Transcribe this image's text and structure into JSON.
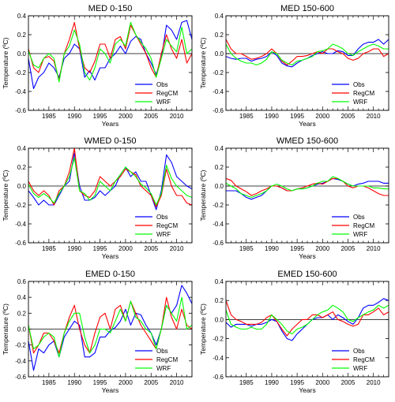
{
  "chart_data": [
    {
      "type": "line",
      "title": "MED 0-150",
      "xlabel": "Years",
      "ylabel": "Temperature (ºC)",
      "xlim": [
        1981,
        2013
      ],
      "ylim": [
        -0.6,
        0.4
      ],
      "xticks": [
        "1985",
        "1990",
        "1995",
        "2000",
        "2005",
        "2010"
      ],
      "yticks": [
        "-0.6",
        "-0.4",
        "-0.2",
        "0.0",
        "0.2",
        "0.4"
      ],
      "legend": "bottom-right",
      "x": [
        1981,
        1982,
        1983,
        1984,
        1985,
        1986,
        1987,
        1988,
        1989,
        1990,
        1991,
        1992,
        1993,
        1994,
        1995,
        1996,
        1997,
        1998,
        1999,
        2000,
        2001,
        2002,
        2003,
        2004,
        2005,
        2006,
        2007,
        2008,
        2009,
        2010,
        2011,
        2012,
        2013
      ],
      "series": [
        {
          "name": "Obs",
          "color": "#0000ff",
          "values": [
            -0.05,
            -0.37,
            -0.25,
            -0.2,
            -0.1,
            -0.15,
            -0.25,
            -0.05,
            0.0,
            0.1,
            0.05,
            -0.25,
            -0.18,
            -0.28,
            -0.15,
            -0.15,
            -0.05,
            0.0,
            0.08,
            0.0,
            0.13,
            0.18,
            0.15,
            0.0,
            -0.1,
            -0.22,
            -0.05,
            0.3,
            0.25,
            0.15,
            0.33,
            0.35,
            0.15
          ]
        },
        {
          "name": "RegCM",
          "color": "#ff0000",
          "values": [
            0.05,
            -0.15,
            -0.2,
            -0.05,
            -0.03,
            -0.08,
            -0.28,
            0.0,
            0.15,
            0.33,
            0.05,
            -0.15,
            -0.2,
            -0.08,
            0.1,
            0.1,
            -0.05,
            0.15,
            0.18,
            0.05,
            0.3,
            0.2,
            0.1,
            0.0,
            -0.15,
            -0.25,
            0.0,
            0.2,
            0.05,
            -0.05,
            0.15,
            -0.1,
            0.0
          ]
        },
        {
          "name": "WRF",
          "color": "#00ff00",
          "values": [
            0.03,
            -0.12,
            -0.15,
            -0.05,
            0.0,
            -0.05,
            -0.3,
            0.0,
            0.08,
            0.25,
            0.1,
            -0.2,
            -0.28,
            -0.15,
            0.05,
            0.0,
            -0.1,
            0.1,
            0.15,
            0.08,
            0.33,
            0.2,
            0.12,
            0.05,
            -0.05,
            -0.25,
            -0.05,
            0.15,
            0.08,
            0.02,
            0.28,
            0.0,
            0.05
          ]
        }
      ]
    },
    {
      "type": "line",
      "title": "MED 150-600",
      "xlabel": "Years",
      "ylabel": "Temperature (ºC)",
      "xlim": [
        1981,
        2013
      ],
      "ylim": [
        -0.6,
        0.4
      ],
      "xticks": [
        "1985",
        "1990",
        "1995",
        "2000",
        "2005",
        "2010"
      ],
      "yticks": [
        "-0.6",
        "-0.4",
        "-0.2",
        "0.0",
        "0.2",
        "0.4"
      ],
      "legend": "bottom-right",
      "x": [
        1981,
        1982,
        1983,
        1984,
        1985,
        1986,
        1987,
        1988,
        1989,
        1990,
        1991,
        1992,
        1993,
        1994,
        1995,
        1996,
        1997,
        1998,
        1999,
        2000,
        2001,
        2002,
        2003,
        2004,
        2005,
        2006,
        2007,
        2008,
        2009,
        2010,
        2011,
        2012,
        2013
      ],
      "series": [
        {
          "name": "Obs",
          "color": "#0000ff",
          "values": [
            -0.03,
            -0.05,
            -0.06,
            -0.05,
            -0.05,
            -0.08,
            -0.06,
            -0.05,
            -0.03,
            0.02,
            -0.02,
            -0.1,
            -0.13,
            -0.14,
            -0.1,
            -0.07,
            -0.05,
            -0.02,
            0.0,
            0.02,
            0.0,
            0.0,
            0.03,
            0.02,
            -0.02,
            -0.02,
            0.05,
            0.1,
            0.12,
            0.12,
            0.15,
            0.1,
            0.15
          ]
        },
        {
          "name": "RegCM",
          "color": "#ff0000",
          "values": [
            0.15,
            0.05,
            0.0,
            0.0,
            -0.03,
            -0.06,
            -0.05,
            -0.03,
            0.0,
            0.05,
            0.0,
            -0.08,
            -0.12,
            -0.08,
            -0.03,
            -0.03,
            -0.02,
            0.0,
            0.02,
            0.0,
            0.05,
            0.05,
            0.02,
            0.0,
            -0.05,
            -0.07,
            -0.05,
            0.0,
            0.02,
            0.05,
            0.05,
            -0.03,
            0.0
          ]
        },
        {
          "name": "WRF",
          "color": "#00ff00",
          "values": [
            0.1,
            0.0,
            -0.05,
            -0.08,
            -0.1,
            -0.1,
            -0.12,
            -0.1,
            -0.06,
            0.02,
            0.0,
            -0.07,
            -0.1,
            -0.12,
            -0.08,
            -0.07,
            -0.05,
            -0.03,
            0.02,
            0.03,
            0.05,
            0.1,
            0.08,
            0.05,
            0.0,
            -0.02,
            0.02,
            0.05,
            0.08,
            0.1,
            0.08,
            0.05,
            0.05
          ]
        }
      ]
    },
    {
      "type": "line",
      "title": "WMED 0-150",
      "xlabel": "Years",
      "ylabel": "Temperature (ºC)",
      "xlim": [
        1981,
        2013
      ],
      "ylim": [
        -0.6,
        0.4
      ],
      "xticks": [
        "1985",
        "1990",
        "1995",
        "2000",
        "2005",
        "2010"
      ],
      "yticks": [
        "-0.6",
        "-0.4",
        "-0.2",
        "0.0",
        "0.2",
        "0.4"
      ],
      "legend": "bottom-right",
      "x": [
        1981,
        1982,
        1983,
        1984,
        1985,
        1986,
        1987,
        1988,
        1989,
        1990,
        1991,
        1992,
        1993,
        1994,
        1995,
        1996,
        1997,
        1998,
        1999,
        2000,
        2001,
        2002,
        2003,
        2004,
        2005,
        2006,
        2007,
        2008,
        2009,
        2010,
        2011,
        2012,
        2013
      ],
      "series": [
        {
          "name": "Obs",
          "color": "#0000ff",
          "values": [
            -0.05,
            -0.12,
            -0.2,
            -0.15,
            -0.2,
            -0.2,
            -0.1,
            0.0,
            0.05,
            0.35,
            0.0,
            -0.15,
            -0.15,
            -0.12,
            -0.05,
            -0.1,
            -0.05,
            0.0,
            0.12,
            0.2,
            0.1,
            0.15,
            0.05,
            0.05,
            -0.1,
            -0.25,
            -0.05,
            0.33,
            0.25,
            0.1,
            0.05,
            0.0,
            -0.03
          ]
        },
        {
          "name": "RegCM",
          "color": "#ff0000",
          "values": [
            0.05,
            -0.05,
            -0.1,
            -0.05,
            -0.1,
            -0.2,
            -0.05,
            0.0,
            0.15,
            0.4,
            -0.05,
            -0.1,
            -0.12,
            -0.05,
            0.1,
            0.05,
            0.0,
            0.05,
            0.1,
            0.18,
            0.15,
            0.12,
            0.0,
            -0.05,
            -0.1,
            -0.22,
            -0.1,
            0.18,
            0.0,
            -0.1,
            -0.1,
            -0.18,
            -0.2
          ]
        },
        {
          "name": "WRF",
          "color": "#00ff00",
          "values": [
            0.02,
            -0.08,
            -0.12,
            -0.08,
            -0.12,
            -0.18,
            -0.08,
            0.0,
            0.1,
            0.3,
            -0.05,
            -0.08,
            -0.15,
            -0.1,
            0.05,
            0.0,
            -0.05,
            0.05,
            0.12,
            0.2,
            0.15,
            0.1,
            0.02,
            -0.02,
            -0.08,
            -0.2,
            -0.08,
            0.22,
            0.08,
            0.0,
            -0.05,
            -0.1,
            -0.12
          ]
        }
      ]
    },
    {
      "type": "line",
      "title": "WMED 150-600",
      "xlabel": "Years",
      "ylabel": "Temperature (ºC)",
      "xlim": [
        1981,
        2013
      ],
      "ylim": [
        -0.6,
        0.4
      ],
      "xticks": [
        "1985",
        "1990",
        "1995",
        "2000",
        "2005",
        "2010"
      ],
      "yticks": [
        "-0.6",
        "-0.4",
        "-0.2",
        "0.0",
        "0.2",
        "0.4"
      ],
      "legend": "bottom-right",
      "x": [
        1981,
        1982,
        1983,
        1984,
        1985,
        1986,
        1987,
        1988,
        1989,
        1990,
        1991,
        1992,
        1993,
        1994,
        1995,
        1996,
        1997,
        1998,
        1999,
        2000,
        2001,
        2002,
        2003,
        2004,
        2005,
        2006,
        2007,
        2008,
        2009,
        2010,
        2011,
        2012,
        2013
      ],
      "series": [
        {
          "name": "Obs",
          "color": "#0000ff",
          "values": [
            -0.05,
            -0.05,
            -0.05,
            -0.08,
            -0.12,
            -0.14,
            -0.12,
            -0.1,
            -0.05,
            0.0,
            0.0,
            -0.02,
            -0.05,
            -0.05,
            -0.03,
            -0.03,
            -0.02,
            0.0,
            0.02,
            0.03,
            0.05,
            0.08,
            0.07,
            0.05,
            0.02,
            0.0,
            0.02,
            0.03,
            0.05,
            0.05,
            0.05,
            0.03,
            0.03
          ]
        },
        {
          "name": "RegCM",
          "color": "#ff0000",
          "values": [
            0.08,
            0.06,
            0.0,
            -0.03,
            -0.06,
            -0.1,
            -0.08,
            -0.05,
            -0.03,
            0.0,
            0.0,
            -0.02,
            -0.05,
            -0.05,
            -0.03,
            -0.02,
            0.0,
            0.02,
            0.03,
            0.02,
            0.05,
            0.08,
            0.08,
            0.05,
            0.0,
            -0.02,
            0.0,
            0.0,
            -0.02,
            -0.05,
            -0.08,
            -0.1,
            -0.1
          ]
        },
        {
          "name": "WRF",
          "color": "#00ff00",
          "values": [
            0.03,
            0.0,
            -0.03,
            -0.08,
            -0.1,
            -0.12,
            -0.1,
            -0.08,
            -0.05,
            0.0,
            0.02,
            0.0,
            -0.03,
            -0.05,
            -0.03,
            -0.03,
            -0.02,
            0.0,
            0.03,
            0.05,
            0.05,
            0.1,
            0.08,
            0.05,
            0.02,
            0.0,
            0.0,
            0.0,
            0.0,
            -0.02,
            -0.02,
            -0.03,
            -0.03
          ]
        }
      ]
    },
    {
      "type": "line",
      "title": "EMED 0-150",
      "xlabel": "Years",
      "ylabel": "Temperature (ºC)",
      "xlim": [
        1981,
        2013
      ],
      "ylim": [
        -0.6,
        0.6
      ],
      "xticks": [
        "1985",
        "1990",
        "1995",
        "2000",
        "2005",
        "2010"
      ],
      "yticks": [
        "-0.6",
        "-0.4",
        "-0.2",
        "0.0",
        "0.2",
        "0.4",
        "0.6"
      ],
      "legend": "bottom-right",
      "x": [
        1981,
        1982,
        1983,
        1984,
        1985,
        1986,
        1987,
        1988,
        1989,
        1990,
        1991,
        1992,
        1993,
        1994,
        1995,
        1996,
        1997,
        1998,
        1999,
        2000,
        2001,
        2002,
        2003,
        2004,
        2005,
        2006,
        2007,
        2008,
        2009,
        2010,
        2011,
        2012,
        2013
      ],
      "series": [
        {
          "name": "Obs",
          "color": "#0000ff",
          "values": [
            -0.15,
            -0.52,
            -0.25,
            -0.3,
            -0.2,
            -0.15,
            -0.35,
            -0.1,
            0.0,
            0.1,
            0.05,
            -0.35,
            -0.35,
            -0.3,
            -0.1,
            -0.1,
            -0.02,
            0.02,
            0.1,
            0.25,
            0.05,
            0.2,
            0.18,
            0.05,
            -0.05,
            -0.2,
            0.0,
            0.3,
            0.2,
            0.3,
            0.55,
            0.45,
            0.32
          ]
        },
        {
          "name": "RegCM",
          "color": "#ff0000",
          "values": [
            0.05,
            -0.3,
            -0.2,
            -0.05,
            -0.05,
            -0.15,
            -0.3,
            -0.05,
            0.15,
            0.3,
            0.0,
            -0.2,
            -0.3,
            -0.05,
            0.15,
            0.2,
            0.0,
            0.25,
            0.3,
            0.1,
            0.35,
            0.2,
            0.05,
            -0.05,
            -0.15,
            -0.25,
            0.0,
            0.4,
            0.15,
            0.0,
            0.25,
            0.05,
            0.0
          ]
        },
        {
          "name": "WRF",
          "color": "#00ff00",
          "values": [
            0.05,
            -0.25,
            -0.2,
            -0.1,
            -0.05,
            -0.1,
            -0.35,
            -0.05,
            0.1,
            0.2,
            0.2,
            -0.1,
            -0.3,
            -0.2,
            0.0,
            0.0,
            -0.05,
            0.1,
            0.25,
            0.1,
            0.35,
            0.15,
            0.1,
            0.0,
            -0.05,
            -0.25,
            0.0,
            0.3,
            0.2,
            0.1,
            0.4,
            0.0,
            0.05
          ]
        }
      ]
    },
    {
      "type": "line",
      "title": "EMED 150-600",
      "xlabel": "Years",
      "ylabel": "Temperature (ºC)",
      "xlim": [
        1981,
        2013
      ],
      "ylim": [
        -0.6,
        0.4
      ],
      "xticks": [
        "1985",
        "1990",
        "1995",
        "2000",
        "2005",
        "2010"
      ],
      "yticks": [
        "-0.6",
        "-0.4",
        "-0.2",
        "0.0",
        "0.2",
        "0.4"
      ],
      "legend": "bottom-right",
      "x": [
        1981,
        1982,
        1983,
        1984,
        1985,
        1986,
        1987,
        1988,
        1989,
        1990,
        1991,
        1992,
        1993,
        1994,
        1995,
        1996,
        1997,
        1998,
        1999,
        2000,
        2001,
        2002,
        2003,
        2004,
        2005,
        2006,
        2007,
        2008,
        2009,
        2010,
        2011,
        2012,
        2013
      ],
      "series": [
        {
          "name": "Obs",
          "color": "#0000ff",
          "values": [
            -0.03,
            -0.08,
            -0.05,
            -0.05,
            -0.05,
            -0.07,
            -0.05,
            -0.05,
            -0.03,
            0.0,
            -0.02,
            -0.12,
            -0.2,
            -0.22,
            -0.15,
            -0.1,
            -0.05,
            0.0,
            0.02,
            0.02,
            0.05,
            0.0,
            0.05,
            0.02,
            -0.02,
            -0.05,
            0.02,
            0.12,
            0.15,
            0.15,
            0.18,
            0.22,
            0.2
          ]
        },
        {
          "name": "RegCM",
          "color": "#ff0000",
          "values": [
            0.2,
            0.05,
            0.0,
            -0.02,
            -0.05,
            -0.05,
            -0.05,
            -0.03,
            0.02,
            0.05,
            -0.02,
            -0.1,
            -0.17,
            -0.1,
            -0.05,
            0.0,
            0.0,
            0.05,
            0.05,
            0.02,
            0.05,
            0.08,
            0.0,
            -0.02,
            -0.05,
            -0.07,
            -0.05,
            0.05,
            0.05,
            0.08,
            0.12,
            0.05,
            0.08
          ]
        },
        {
          "name": "WRF",
          "color": "#00ff00",
          "values": [
            0.1,
            -0.05,
            -0.08,
            -0.1,
            -0.1,
            -0.08,
            -0.1,
            -0.1,
            -0.05,
            0.05,
            0.0,
            -0.05,
            -0.12,
            -0.15,
            -0.1,
            -0.08,
            -0.05,
            0.0,
            0.05,
            0.08,
            0.1,
            0.15,
            0.12,
            0.08,
            0.0,
            -0.02,
            0.02,
            0.05,
            0.08,
            0.1,
            0.15,
            0.12,
            0.15
          ]
        }
      ]
    }
  ]
}
